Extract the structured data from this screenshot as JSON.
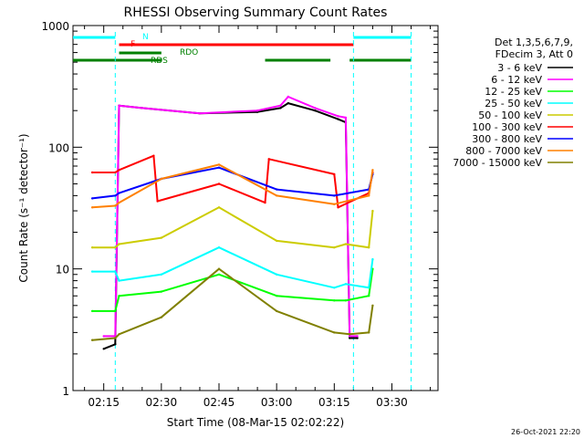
{
  "chart_data": {
    "type": "line",
    "title": "RHESSI Observing Summary Count Rates",
    "xlabel": "Start Time (08-Mar-15 02:02:22)",
    "ylabel": "Count Rate (s⁻¹ detector⁻¹)",
    "y_scale": "log",
    "ylim": [
      1,
      1000
    ],
    "x_unit": "minutes after 02:00 UT",
    "xlim": [
      7,
      102
    ],
    "x_ticks": [
      {
        "value": 15,
        "label": "02:15"
      },
      {
        "value": 30,
        "label": "02:30"
      },
      {
        "value": 45,
        "label": "02:45"
      },
      {
        "value": 60,
        "label": "03:00"
      },
      {
        "value": 75,
        "label": "03:15"
      },
      {
        "value": 90,
        "label": "03:30"
      }
    ],
    "y_ticks": [
      {
        "value": 1,
        "label": "1"
      },
      {
        "value": 10,
        "label": "10"
      },
      {
        "value": 100,
        "label": "100"
      },
      {
        "value": 1000,
        "label": "1000"
      }
    ],
    "legend": {
      "position": "right",
      "header": [
        "Det 1,3,5,6,7,9,",
        "FDecim 3, Att 0"
      ]
    },
    "series": [
      {
        "name": "3 - 6 keV",
        "color": "#000000",
        "x": [
          15,
          18,
          19,
          25,
          40,
          55,
          61,
          63,
          70,
          76,
          78,
          79,
          81
        ],
        "values": [
          2.2,
          2.4,
          220,
          210,
          190,
          195,
          210,
          230,
          200,
          170,
          160,
          2.7,
          2.7
        ]
      },
      {
        "name": "6 - 12 keV",
        "color": "#ff00ff",
        "x": [
          15,
          18,
          19,
          25,
          40,
          55,
          61,
          63,
          70,
          76,
          78,
          79,
          81
        ],
        "values": [
          2.8,
          2.8,
          220,
          210,
          190,
          200,
          220,
          260,
          210,
          180,
          175,
          2.8,
          2.8
        ]
      },
      {
        "name": "12 - 25 keV",
        "color": "#00ff00",
        "x": [
          12,
          18,
          19,
          30,
          45,
          60,
          75,
          78,
          84,
          85
        ],
        "values": [
          4.5,
          4.5,
          6,
          6.5,
          9,
          6,
          5.5,
          5.5,
          6,
          10
        ]
      },
      {
        "name": "25 - 50 keV",
        "color": "#00ffff",
        "x": [
          12,
          18,
          19,
          30,
          45,
          60,
          75,
          78,
          84,
          85
        ],
        "values": [
          9.5,
          9.5,
          8,
          9,
          15,
          9,
          7,
          7.5,
          7,
          12
        ]
      },
      {
        "name": "50 - 100 keV",
        "color": "#cccc00",
        "x": [
          12,
          18,
          19,
          30,
          45,
          60,
          75,
          78,
          84,
          85
        ],
        "values": [
          15,
          15,
          16,
          18,
          32,
          17,
          15,
          16,
          15,
          30
        ]
      },
      {
        "name": "100 - 300 keV",
        "color": "#ff0000",
        "x": [
          12,
          18,
          19,
          28,
          29,
          45,
          57,
          58,
          75,
          76,
          84,
          85
        ],
        "values": [
          62,
          62,
          65,
          85,
          36,
          50,
          35,
          80,
          60,
          32,
          42,
          62
        ]
      },
      {
        "name": "300 - 800 keV",
        "color": "#0000ff",
        "x": [
          12,
          18,
          19,
          30,
          45,
          60,
          75,
          84,
          85
        ],
        "values": [
          38,
          40,
          42,
          55,
          68,
          45,
          40,
          45,
          60
        ]
      },
      {
        "name": "800 - 7000 keV",
        "color": "#ff8000",
        "x": [
          12,
          18,
          19,
          30,
          45,
          60,
          75,
          84,
          85
        ],
        "values": [
          32,
          33,
          35,
          55,
          72,
          40,
          34,
          40,
          65
        ]
      },
      {
        "name": "7000 - 15000 keV",
        "color": "#808000",
        "x": [
          12,
          18,
          19,
          30,
          45,
          60,
          75,
          79,
          84,
          85
        ],
        "values": [
          2.6,
          2.7,
          2.9,
          4,
          10,
          4.5,
          3,
          2.9,
          3,
          5
        ]
      }
    ],
    "annotations": {
      "night": {
        "label": "N",
        "color": "#00ffff",
        "intervals": [
          [
            7,
            18
          ],
          [
            80,
            95
          ]
        ],
        "boundaries": [
          18,
          80,
          95
        ]
      },
      "flare": {
        "label": "F",
        "color": "#ff0000",
        "intervals": [
          [
            19,
            80
          ]
        ]
      },
      "rds": {
        "label": "RDS",
        "color": "#008000",
        "intervals": [
          [
            7,
            30
          ],
          [
            57,
            74
          ],
          [
            79,
            95
          ]
        ]
      },
      "rdo": {
        "label": "RDO",
        "color": "#008000",
        "intervals": [
          [
            19,
            30
          ]
        ]
      }
    },
    "grid": false
  },
  "footer": {
    "timestamp": "26-Oct-2021 22:20"
  }
}
